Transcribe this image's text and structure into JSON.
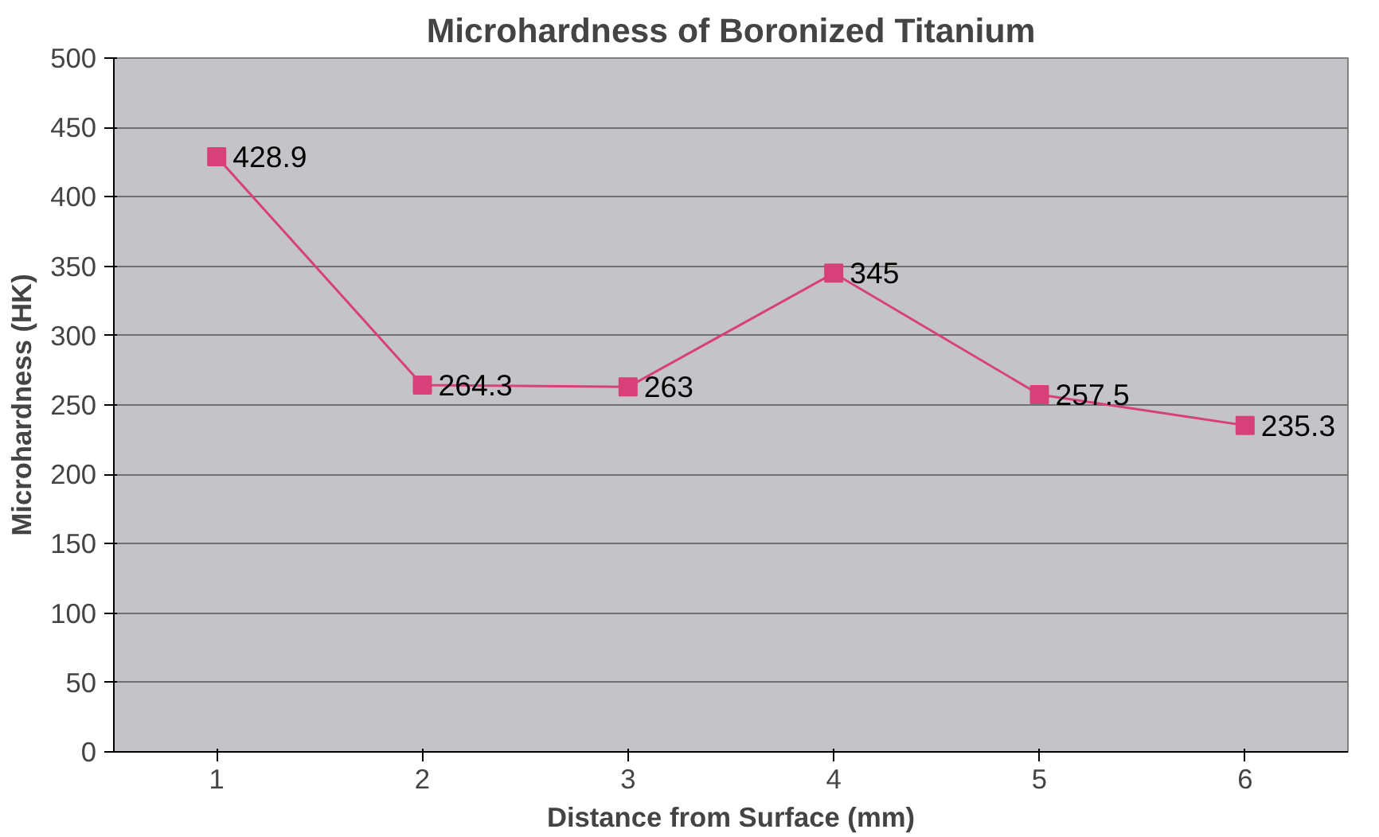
{
  "chart_data": {
    "type": "line",
    "title": "Microhardness of Boronized Titanium",
    "xlabel": "Distance from Surface (mm)",
    "ylabel": "Microhardness (HK)",
    "categories": [
      "1",
      "2",
      "3",
      "4",
      "5",
      "6"
    ],
    "series": [
      {
        "color": "#d8407a",
        "values": [
          428.9,
          264.3,
          263,
          345,
          257.5,
          235.3
        ]
      }
    ],
    "ylim": [
      0,
      500
    ],
    "yticks": [
      0,
      50,
      100,
      150,
      200,
      250,
      300,
      350,
      400,
      450,
      500
    ],
    "grid": "y",
    "marker": "square",
    "line_style": "solid",
    "data_labels": true
  }
}
